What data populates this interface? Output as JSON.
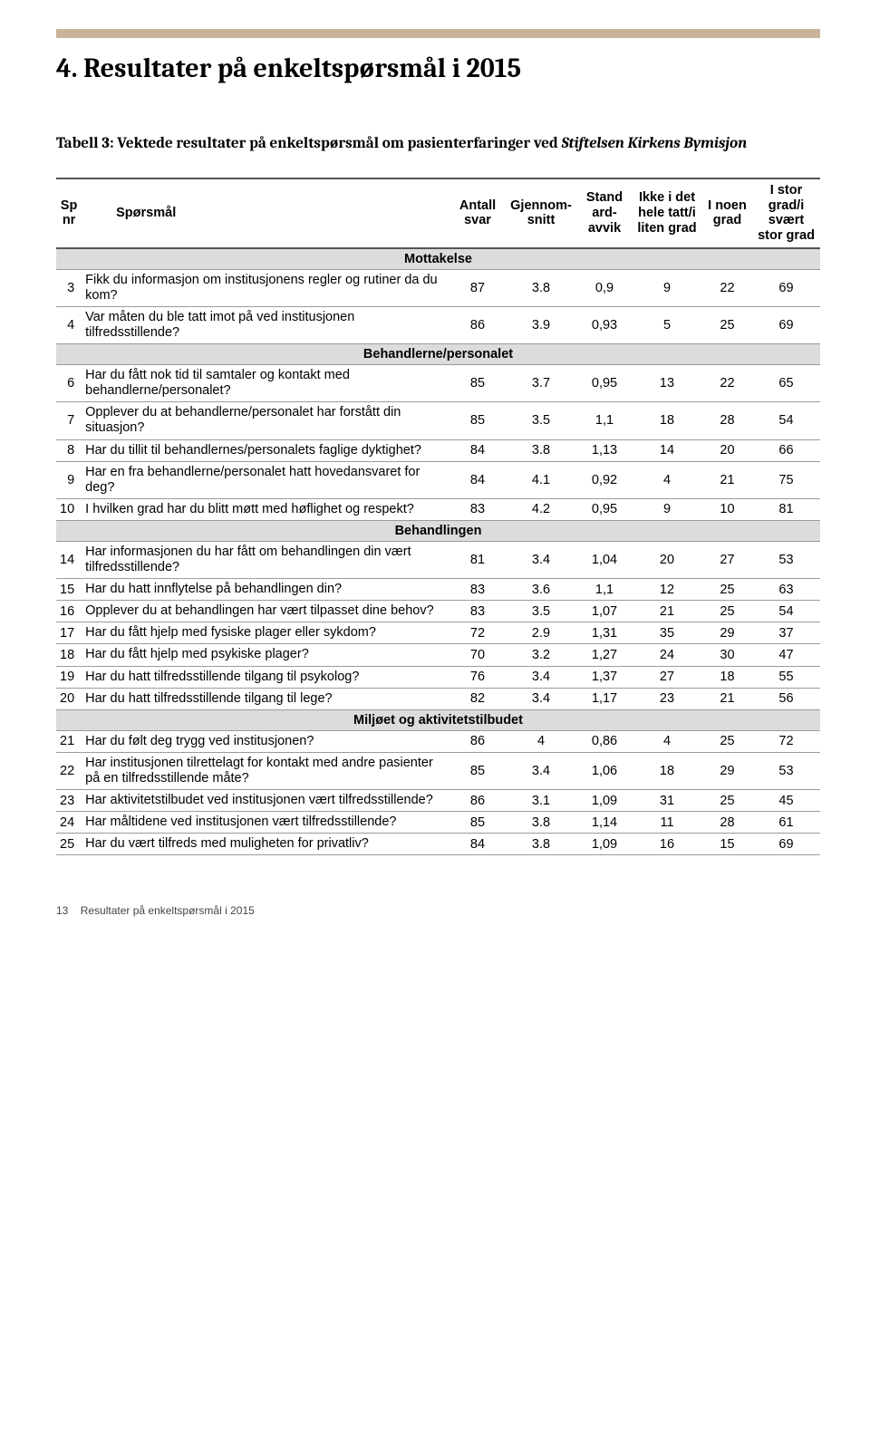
{
  "colors": {
    "rule_bg": "#c9b49a",
    "section_bg": "#dcdcdc",
    "thick_border": "#555555",
    "thin_border": "#9b9b9b",
    "text": "#000000",
    "bg": "#ffffff"
  },
  "page_title": "4. Resultater på enkeltspørsmål i 2015",
  "table_caption_prefix": "Tabell 3: Vektede resultater på enkeltspørsmål om pasienterfaringer ved ",
  "table_caption_institution": "Stiftelsen Kirkens Bymisjon",
  "columns": {
    "sp_nr": "Sp\nnr",
    "sporsmal": "Spørsmål",
    "antall": "Antall\nsvar",
    "gjennom": "Gjennom-\nsnitt",
    "stand": "Stand\nard-\navvik",
    "ikke": "Ikke i det\nhele tatt/i\nliten grad",
    "noen": "I noen\ngrad",
    "stor": "I stor\ngrad/i\nsvært\nstor grad"
  },
  "sections": [
    {
      "label": "Mottakelse",
      "rows": [
        {
          "nr": "3",
          "q": "Fikk du informasjon om institusjonens regler og rutiner da du kom?",
          "antall": "87",
          "gj": "3.8",
          "std": "0,9",
          "ikke": "9",
          "noen": "22",
          "stor": "69"
        },
        {
          "nr": "4",
          "q": "Var måten du ble tatt imot på ved institusjonen tilfredsstillende?",
          "antall": "86",
          "gj": "3.9",
          "std": "0,93",
          "ikke": "5",
          "noen": "25",
          "stor": "69"
        }
      ]
    },
    {
      "label": "Behandlerne/personalet",
      "rows": [
        {
          "nr": "6",
          "q": "Har du fått nok tid til samtaler og kontakt med behandlerne/personalet?",
          "antall": "85",
          "gj": "3.7",
          "std": "0,95",
          "ikke": "13",
          "noen": "22",
          "stor": "65"
        },
        {
          "nr": "7",
          "q": "Opplever du at behandlerne/personalet har forstått din situasjon?",
          "antall": "85",
          "gj": "3.5",
          "std": "1,1",
          "ikke": "18",
          "noen": "28",
          "stor": "54"
        },
        {
          "nr": "8",
          "q": "Har du tillit til behandlernes/personalets faglige dyktighet?",
          "antall": "84",
          "gj": "3.8",
          "std": "1,13",
          "ikke": "14",
          "noen": "20",
          "stor": "66"
        },
        {
          "nr": "9",
          "q": "Har en fra behandlerne/personalet hatt hovedansvaret for deg?",
          "antall": "84",
          "gj": "4.1",
          "std": "0,92",
          "ikke": "4",
          "noen": "21",
          "stor": "75"
        },
        {
          "nr": "10",
          "q": "I hvilken grad har du blitt møtt med høflighet og respekt?",
          "antall": "83",
          "gj": "4.2",
          "std": "0,95",
          "ikke": "9",
          "noen": "10",
          "stor": "81"
        }
      ]
    },
    {
      "label": "Behandlingen",
      "rows": [
        {
          "nr": "14",
          "q": "Har informasjonen du har fått om behandlingen din vært tilfredsstillende?",
          "antall": "81",
          "gj": "3.4",
          "std": "1,04",
          "ikke": "20",
          "noen": "27",
          "stor": "53"
        },
        {
          "nr": "15",
          "q": "Har du hatt innflytelse på behandlingen din?",
          "antall": "83",
          "gj": "3.6",
          "std": "1,1",
          "ikke": "12",
          "noen": "25",
          "stor": "63"
        },
        {
          "nr": "16",
          "q": "Opplever du at behandlingen har vært tilpasset dine behov?",
          "antall": "83",
          "gj": "3.5",
          "std": "1,07",
          "ikke": "21",
          "noen": "25",
          "stor": "54"
        },
        {
          "nr": "17",
          "q": "Har du fått hjelp med fysiske plager eller sykdom?",
          "antall": "72",
          "gj": "2.9",
          "std": "1,31",
          "ikke": "35",
          "noen": "29",
          "stor": "37"
        },
        {
          "nr": "18",
          "q": "Har du fått hjelp med psykiske plager?",
          "antall": "70",
          "gj": "3.2",
          "std": "1,27",
          "ikke": "24",
          "noen": "30",
          "stor": "47"
        },
        {
          "nr": "19",
          "q": "Har du hatt tilfredsstillende tilgang til psykolog?",
          "antall": "76",
          "gj": "3.4",
          "std": "1,37",
          "ikke": "27",
          "noen": "18",
          "stor": "55"
        },
        {
          "nr": "20",
          "q": "Har du hatt tilfredsstillende tilgang til lege?",
          "antall": "82",
          "gj": "3.4",
          "std": "1,17",
          "ikke": "23",
          "noen": "21",
          "stor": "56"
        }
      ]
    },
    {
      "label": "Miljøet og aktivitetstilbudet",
      "rows": [
        {
          "nr": "21",
          "q": "Har du følt deg trygg ved institusjonen?",
          "antall": "86",
          "gj": "4",
          "std": "0,86",
          "ikke": "4",
          "noen": "25",
          "stor": "72"
        },
        {
          "nr": "22",
          "q": "Har institusjonen tilrettelagt for kontakt med andre pasienter på en tilfredsstillende måte?",
          "antall": "85",
          "gj": "3.4",
          "std": "1,06",
          "ikke": "18",
          "noen": "29",
          "stor": "53"
        },
        {
          "nr": "23",
          "q": "Har aktivitetstilbudet ved institusjonen vært tilfredsstillende?",
          "antall": "86",
          "gj": "3.1",
          "std": "1,09",
          "ikke": "31",
          "noen": "25",
          "stor": "45"
        },
        {
          "nr": "24",
          "q": "Har måltidene ved institusjonen vært tilfredsstillende?",
          "antall": "85",
          "gj": "3.8",
          "std": "1,14",
          "ikke": "11",
          "noen": "28",
          "stor": "61"
        },
        {
          "nr": "25",
          "q": "Har du vært tilfreds med muligheten for privatliv?",
          "antall": "84",
          "gj": "3.8",
          "std": "1,09",
          "ikke": "16",
          "noen": "15",
          "stor": "69"
        }
      ]
    }
  ],
  "footer": {
    "page_number": "13",
    "footer_text": "Resultater på enkeltspørsmål i 2015"
  }
}
